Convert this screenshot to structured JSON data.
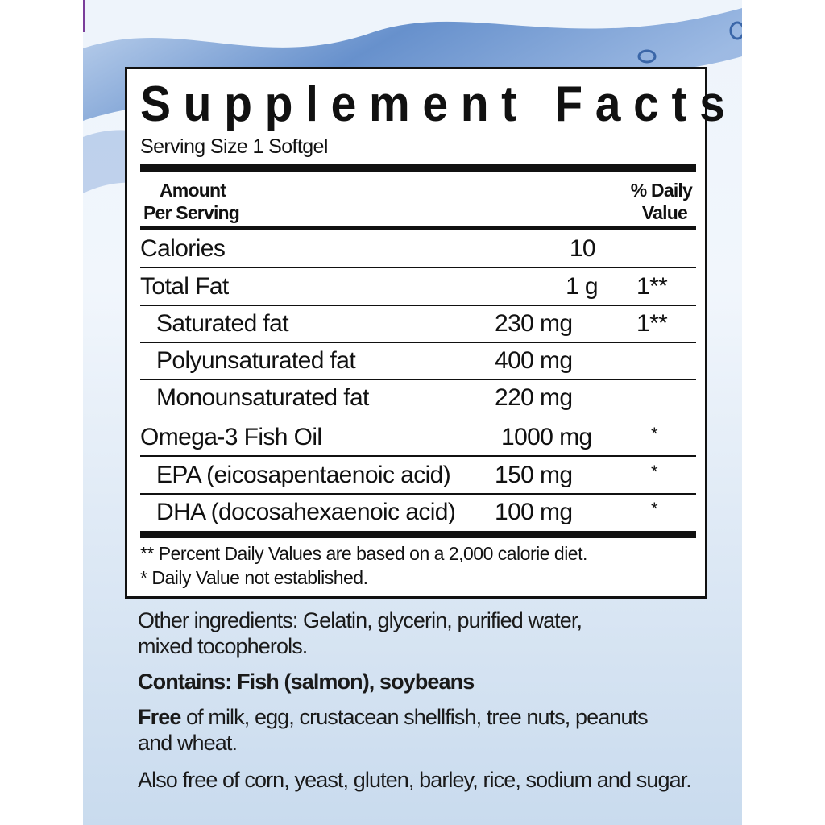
{
  "colors": {
    "accent_edge": "#7a3e9a",
    "background": "#dbe7f4",
    "wave": "#4f7fc4"
  },
  "label": {
    "title": "Supplement Facts",
    "serving_size": "Serving Size 1 Softgel",
    "header_left_1": "Amount",
    "header_left_2": "Per Serving",
    "header_right_1": "% Daily",
    "header_right_2": "Value",
    "rows": [
      {
        "name": "Calories",
        "amount": "10",
        "dv": ""
      },
      {
        "name": "Total Fat",
        "amount": "1 g",
        "dv": "1**"
      },
      {
        "name": "Saturated fat",
        "amount": "230 mg",
        "dv": "1**"
      },
      {
        "name": "Polyunsaturated fat",
        "amount": "400 mg",
        "dv": ""
      },
      {
        "name": "Monounsaturated fat",
        "amount": "220 mg",
        "dv": ""
      },
      {
        "name": "Omega-3 Fish Oil",
        "amount": "1000 mg",
        "dv": "*"
      },
      {
        "name": "EPA (eicosapentaenoic acid)",
        "amount": "150 mg",
        "dv": "*"
      },
      {
        "name": "DHA (docosahexaenoic acid)",
        "amount": "100 mg",
        "dv": "*"
      }
    ],
    "footnote_1": "** Percent Daily Values are based on a 2,000 calorie diet.",
    "footnote_2": "* Daily Value not established."
  },
  "below": {
    "other_1": "Other ingredients: Gelatin, glycerin, purified water,",
    "other_2": "mixed tocopherols.",
    "contains": "Contains: Fish (salmon), soybeans",
    "free_bold": "Free",
    "free_1": " of milk, egg, crustacean shellfish, tree nuts, peanuts",
    "free_2": "and wheat.",
    "also_free": "Also free of corn, yeast, gluten, barley, rice, sodium and sugar."
  }
}
